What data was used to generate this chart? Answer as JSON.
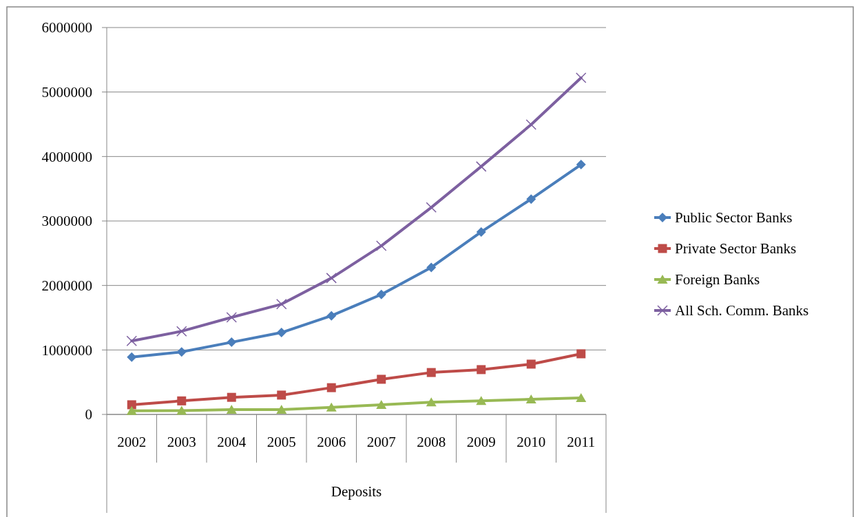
{
  "chart_data": {
    "type": "line",
    "xlabel": "Deposits",
    "categories": [
      "2002",
      "2003",
      "2004",
      "2005",
      "2006",
      "2007",
      "2008",
      "2009",
      "2010",
      "2011"
    ],
    "series": [
      {
        "name": "Public Sector Banks",
        "color": "#4a7ebb",
        "marker": "diamond",
        "values": [
          890000,
          970000,
          1120000,
          1270000,
          1530000,
          1860000,
          2280000,
          2830000,
          3340000,
          3875000
        ]
      },
      {
        "name": "Private Sector Banks",
        "color": "#be4b48",
        "marker": "square",
        "values": [
          150000,
          210000,
          265000,
          300000,
          415000,
          545000,
          650000,
          695000,
          780000,
          940000
        ]
      },
      {
        "name": "Foreign Banks",
        "color": "#98b954",
        "marker": "triangle",
        "values": [
          55000,
          60000,
          75000,
          75000,
          110000,
          150000,
          190000,
          210000,
          235000,
          255000
        ]
      },
      {
        "name": "All Sch. Comm. Banks",
        "color": "#7d60a0",
        "marker": "cross",
        "values": [
          1140000,
          1290000,
          1505000,
          1710000,
          2115000,
          2615000,
          3210000,
          3845000,
          4495000,
          5220000
        ]
      }
    ],
    "ylim": [
      0,
      6000000
    ],
    "yticks": [
      0,
      1000000,
      2000000,
      3000000,
      4000000,
      5000000,
      6000000
    ],
    "grid": "y",
    "legend": "right"
  }
}
